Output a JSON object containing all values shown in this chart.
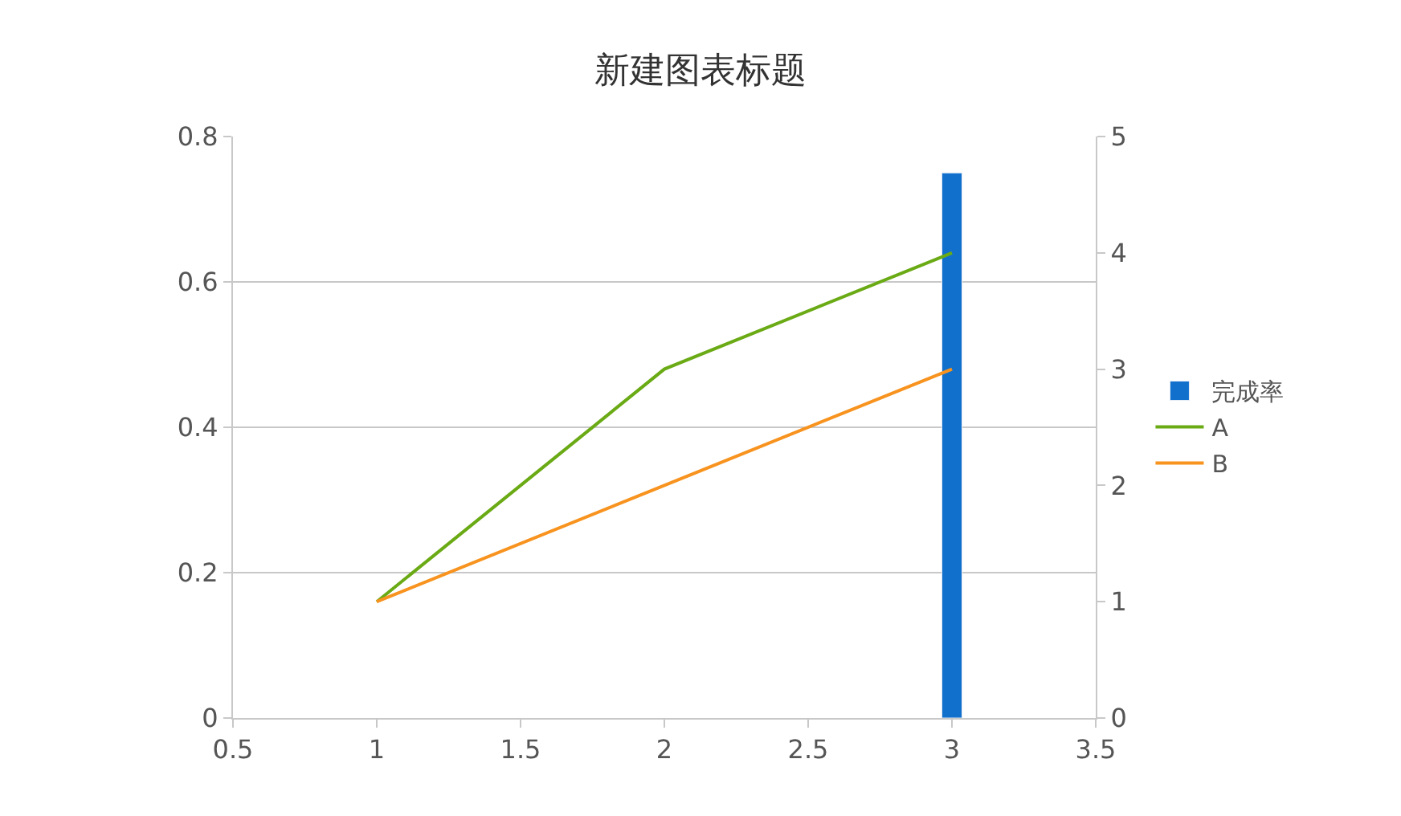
{
  "chart_data": {
    "type": "line",
    "title": "新建图表标题",
    "x": [
      1,
      2,
      3
    ],
    "series": [
      {
        "name": "完成率",
        "type": "bar",
        "color": "#1170cc",
        "x": [
          3
        ],
        "values": [
          0.75
        ]
      },
      {
        "name": "A",
        "color": "#6aaa15",
        "axis": "y2",
        "values": [
          1,
          3,
          4
        ]
      },
      {
        "name": "B",
        "color": "#f7931e",
        "axis": "y2",
        "values": [
          1,
          2,
          3
        ]
      }
    ],
    "xlim": [
      0.5,
      3.5
    ],
    "xticks": [
      0.5,
      1,
      1.5,
      2,
      2.5,
      3,
      3.5
    ],
    "ylim": [
      0,
      0.8
    ],
    "yticks": [
      0,
      0.2,
      0.4,
      0.6,
      0.8
    ],
    "y2lim": [
      0,
      5
    ],
    "y2ticks": [
      0,
      1,
      2,
      3,
      4,
      5
    ],
    "grid": "y",
    "legend": "right",
    "marker": "none",
    "line_style": "solid"
  }
}
